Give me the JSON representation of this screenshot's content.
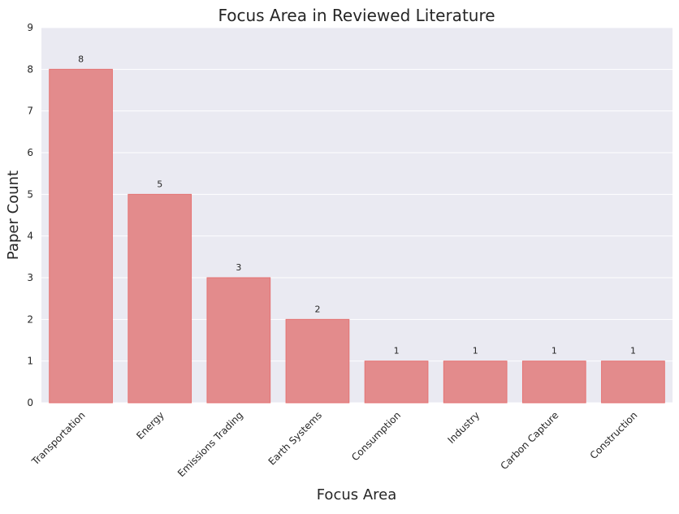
{
  "chart_data": {
    "type": "bar",
    "title": "Focus Area in Reviewed Literature",
    "xlabel": "Focus Area",
    "ylabel": "Paper Count",
    "categories": [
      "Transportation",
      "Energy",
      "Emissions Trading",
      "Earth Systems",
      "Consumption",
      "Industry",
      "Carbon Capture",
      "Construction"
    ],
    "values": [
      8,
      5,
      3,
      2,
      1,
      1,
      1,
      1
    ],
    "data_labels": [
      "8",
      "5",
      "3",
      "2",
      "1",
      "1",
      "1",
      "1"
    ],
    "ylim": [
      0,
      9
    ],
    "yticks": [
      "0",
      "1",
      "2",
      "3",
      "4",
      "5",
      "6",
      "7",
      "8",
      "9"
    ],
    "grid": "horizontal",
    "colors": {
      "bar_fill": "#e38b8c",
      "bar_edge": "#e57373",
      "plot_bg": "#eaeaf2",
      "grid": "#ffffff",
      "text": "#262626"
    }
  }
}
